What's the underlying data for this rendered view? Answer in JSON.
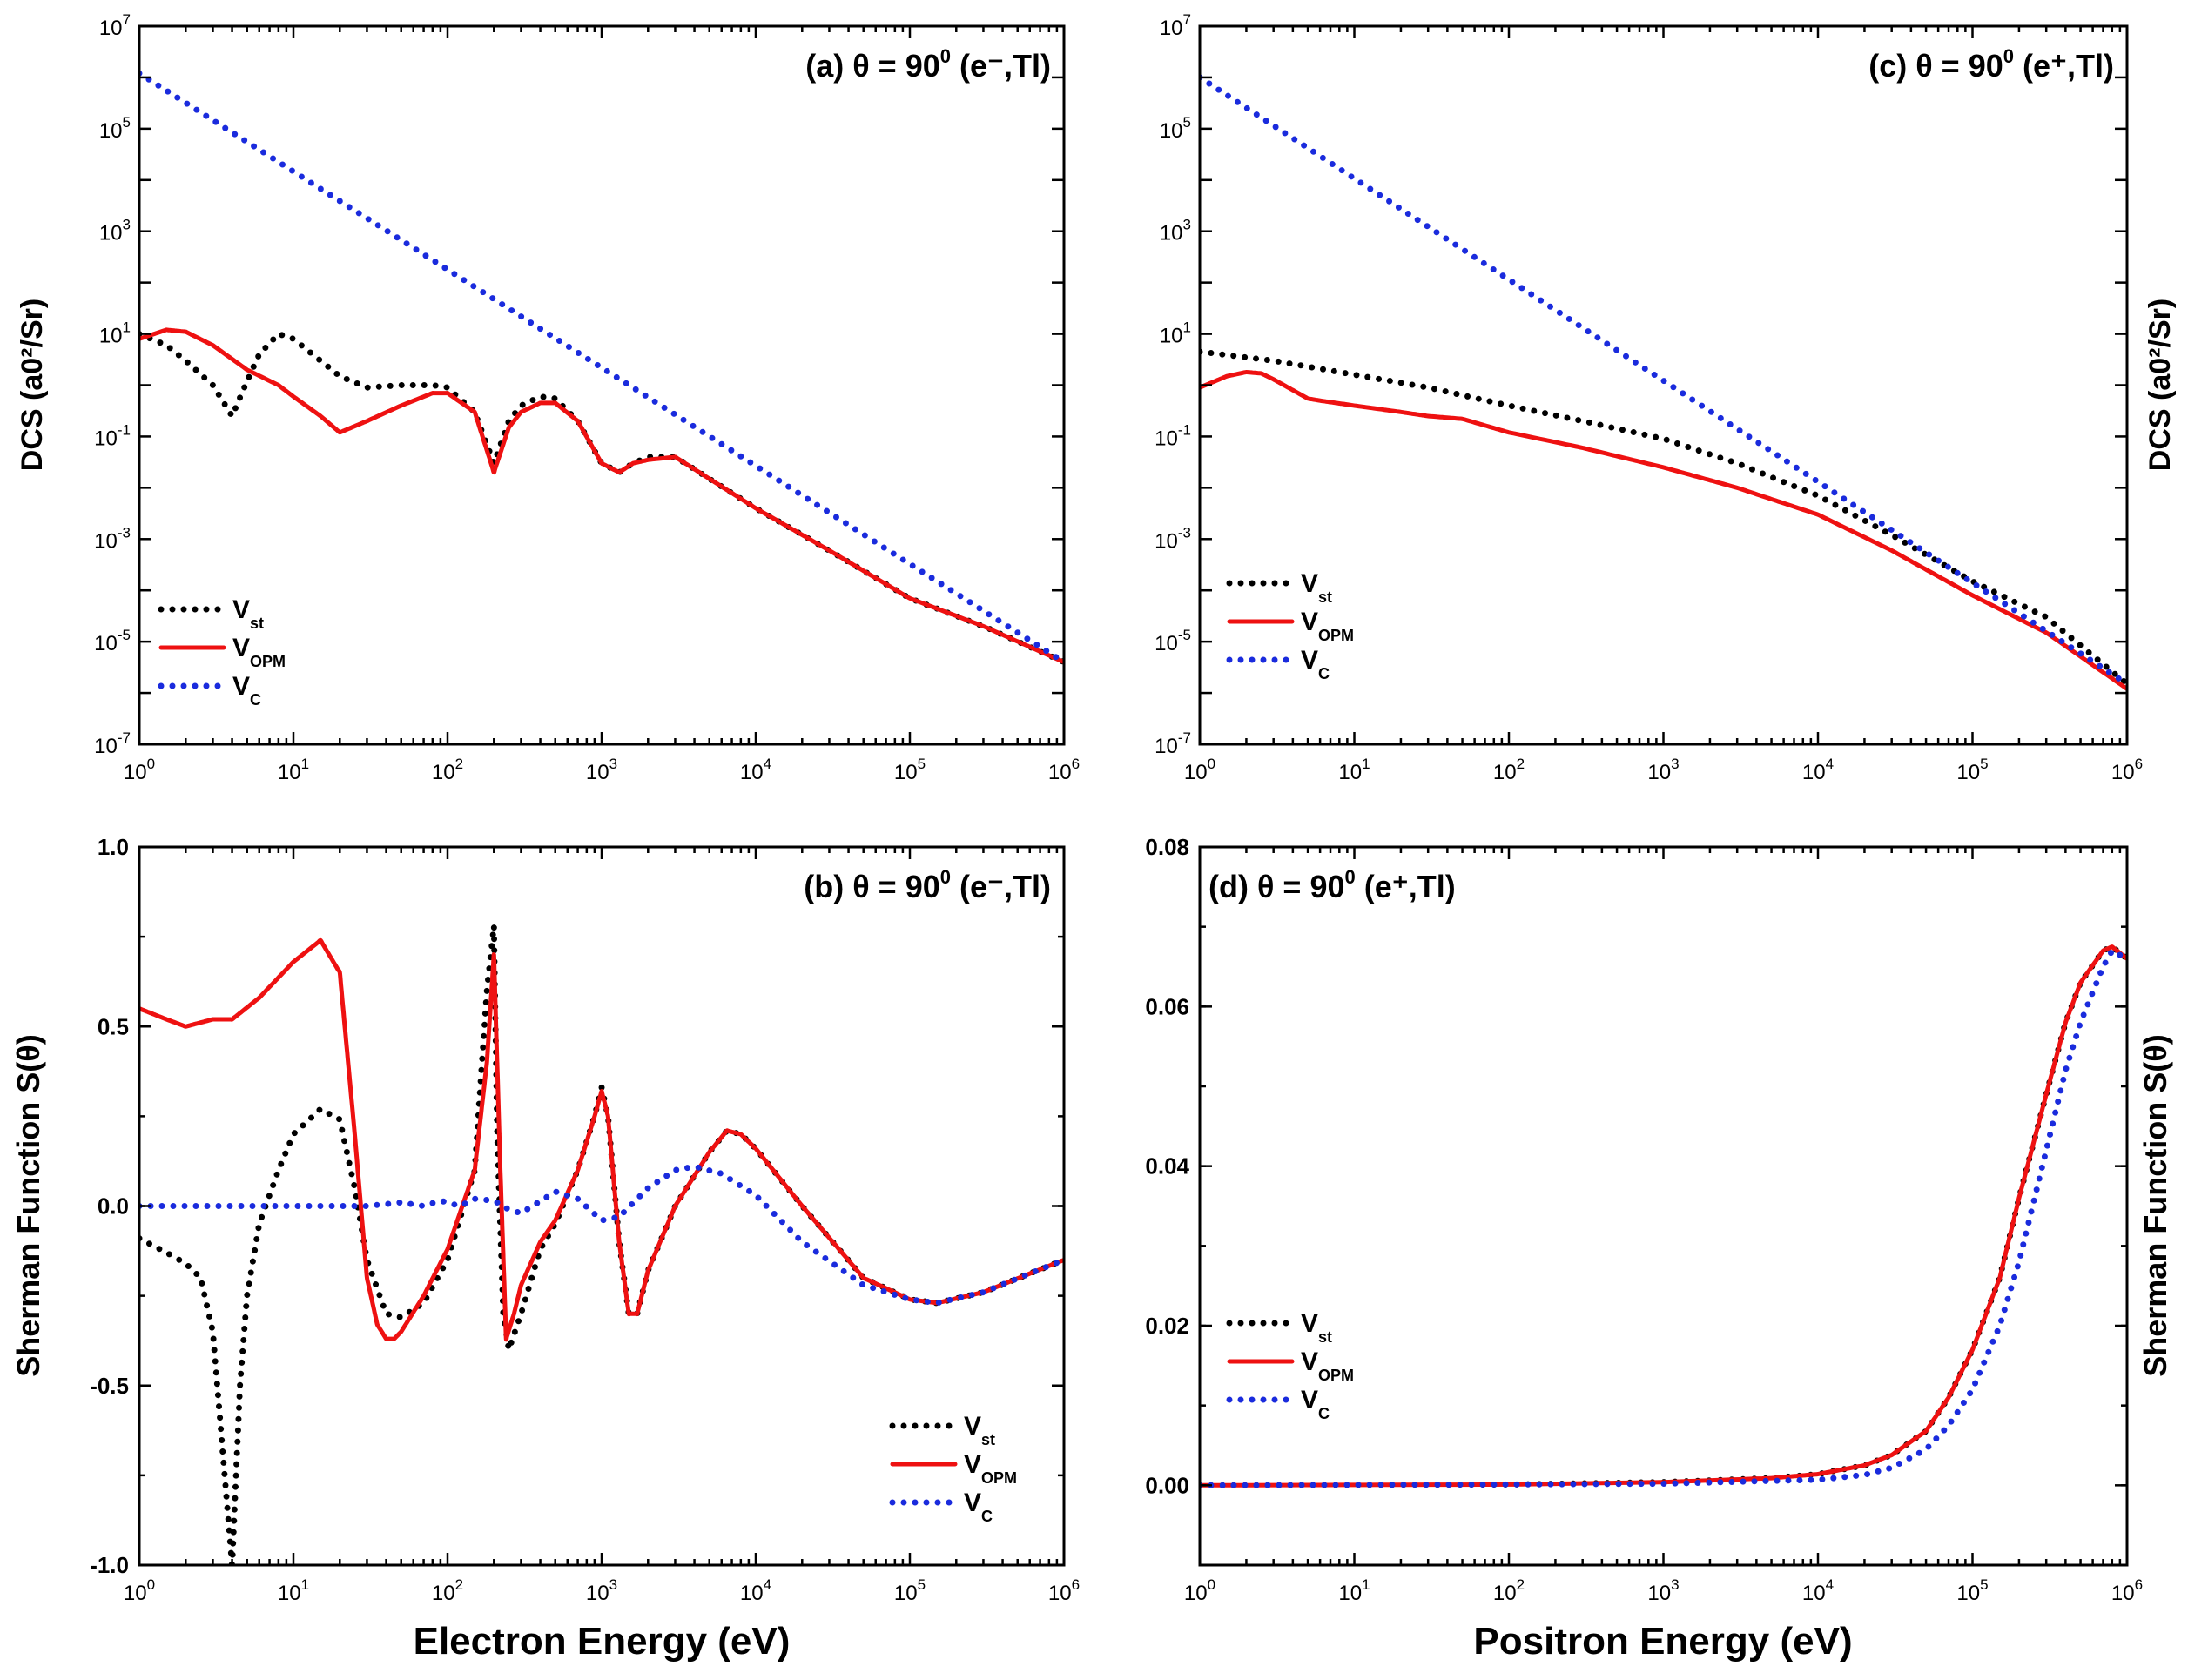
{
  "figure": {
    "x_axis_bottom_left": "Electron Energy (eV)",
    "x_axis_bottom_right": "Positron Energy (eV)",
    "y_axis_top": "DCS (a0²/Sr)",
    "y_axis_bottom": "Sherman Function S(θ)"
  },
  "chart_data": [
    {
      "id": "a",
      "type": "line",
      "title": "(a) θ = 90⁰ (e⁻,Tl)",
      "title_parts": {
        "prefix": "(a) θ = 90",
        "sup": "0",
        "suffix": " (e⁻,Tl)"
      },
      "xlabel": "",
      "ylabel": "DCS (a0²/Sr)",
      "xscale": "log",
      "yscale": "log",
      "xlim": [
        1,
        1000000
      ],
      "ylim": [
        1e-07,
        10000000.0
      ],
      "xticks": [
        "10^0",
        "10^1",
        "10^2",
        "10^3",
        "10^4",
        "10^5",
        "10^6"
      ],
      "yticks": [
        "10^-7",
        "10^-5",
        "10^-3",
        "10^-1",
        "10^1",
        "10^3",
        "10^5",
        "10^7"
      ],
      "legend_position": "bottom-left",
      "series": [
        {
          "name": "Vst",
          "name_main": "V",
          "name_sub": "st",
          "color": "#000000",
          "style": "dotted",
          "x": [
            1,
            1.5,
            2,
            3,
            4,
            5,
            6,
            8,
            10,
            15,
            20,
            30,
            50,
            80,
            100,
            150,
            200,
            250,
            300,
            400,
            500,
            700,
            1000,
            1300,
            1600,
            2000,
            3000,
            5000,
            10000,
            30000,
            100000,
            300000,
            1000000
          ],
          "y": [
            10,
            6,
            3,
            1,
            0.25,
            1.2,
            4,
            10,
            8,
            3,
            1.5,
            0.9,
            1,
            1,
            0.9,
            0.3,
            0.03,
            0.2,
            0.4,
            0.6,
            0.55,
            0.2,
            0.03,
            0.02,
            0.03,
            0.04,
            0.04,
            0.015,
            0.004,
            0.0006,
            7e-05,
            2e-05,
            4e-06
          ]
        },
        {
          "name": "VOPM",
          "name_main": "V",
          "name_sub": "OPM",
          "color": "#ee1111",
          "style": "solid",
          "x": [
            1,
            1.5,
            2,
            3,
            5,
            8,
            10,
            15,
            20,
            30,
            50,
            80,
            100,
            150,
            200,
            250,
            300,
            400,
            500,
            700,
            1000,
            1300,
            1600,
            2000,
            3000,
            5000,
            10000,
            30000,
            100000,
            300000,
            1000000
          ],
          "y": [
            8,
            12,
            11,
            6,
            2,
            1,
            0.6,
            0.25,
            0.12,
            0.2,
            0.4,
            0.7,
            0.7,
            0.3,
            0.02,
            0.15,
            0.3,
            0.45,
            0.45,
            0.2,
            0.03,
            0.02,
            0.03,
            0.035,
            0.04,
            0.015,
            0.004,
            0.0006,
            7e-05,
            2e-05,
            4e-06
          ]
        },
        {
          "name": "VC",
          "name_main": "V",
          "name_sub": "C",
          "color": "#1a2bdd",
          "style": "dotted",
          "x": [
            1,
            1000000
          ],
          "y": [
            1200000,
            4e-06
          ]
        }
      ]
    },
    {
      "id": "b",
      "type": "line",
      "title": "(b) θ = 90⁰ (e⁻,Tl)",
      "title_parts": {
        "prefix": "(b) θ = 90",
        "sup": "0",
        "suffix": " (e⁻,Tl)"
      },
      "xlabel": "Electron Energy (eV)",
      "ylabel": "Sherman Function S(θ)",
      "xscale": "log",
      "yscale": "linear",
      "xlim": [
        1,
        1000000
      ],
      "ylim": [
        -1.0,
        1.0
      ],
      "xticks": [
        "10^0",
        "10^1",
        "10^2",
        "10^3",
        "10^4",
        "10^5",
        "10^6"
      ],
      "yticks": [
        "-1.0",
        "-0.5",
        "0.0",
        "0.5",
        "1.0"
      ],
      "legend_position": "bottom-right",
      "series": [
        {
          "name": "Vst",
          "name_main": "V",
          "name_sub": "st",
          "color": "#000000",
          "style": "dotted",
          "x": [
            1,
            1.5,
            2,
            2.5,
            3,
            3.5,
            4,
            4.5,
            5,
            6,
            8,
            10,
            15,
            20,
            25,
            30,
            40,
            50,
            70,
            100,
            150,
            180,
            200,
            210,
            230,
            250,
            300,
            400,
            500,
            700,
            900,
            1000,
            1100,
            1300,
            1500,
            1700,
            2000,
            3000,
            5000,
            6500,
            8000,
            10000,
            20000,
            50000,
            100000,
            150000,
            300000,
            1000000
          ],
          "y": [
            -0.09,
            -0.13,
            -0.16,
            -0.2,
            -0.35,
            -0.7,
            -1.0,
            -0.5,
            -0.25,
            -0.05,
            0.1,
            0.2,
            0.27,
            0.24,
            0.05,
            -0.15,
            -0.3,
            -0.31,
            -0.27,
            -0.15,
            0.1,
            0.6,
            0.78,
            0.2,
            -0.3,
            -0.4,
            -0.3,
            -0.12,
            -0.05,
            0.1,
            0.25,
            0.33,
            0.25,
            -0.1,
            -0.3,
            -0.3,
            -0.18,
            0.0,
            0.15,
            0.21,
            0.2,
            0.16,
            0.0,
            -0.2,
            -0.26,
            -0.27,
            -0.24,
            -0.15
          ]
        },
        {
          "name": "VOPM",
          "name_main": "V",
          "name_sub": "OPM",
          "color": "#ee1111",
          "style": "solid",
          "x": [
            1,
            1.5,
            2,
            3,
            4,
            6,
            10,
            15,
            20,
            25,
            30,
            35,
            40,
            45,
            50,
            70,
            100,
            150,
            180,
            200,
            220,
            240,
            270,
            300,
            400,
            500,
            700,
            900,
            1000,
            1100,
            1300,
            1500,
            1700,
            2000,
            3000,
            5000,
            6500,
            8000,
            10000,
            20000,
            50000,
            100000,
            150000,
            300000,
            1000000
          ],
          "y": [
            0.55,
            0.52,
            0.5,
            0.52,
            0.52,
            0.58,
            0.68,
            0.74,
            0.65,
            0.2,
            -0.2,
            -0.33,
            -0.37,
            -0.37,
            -0.35,
            -0.25,
            -0.12,
            0.1,
            0.4,
            0.7,
            0.1,
            -0.37,
            -0.3,
            -0.22,
            -0.1,
            -0.04,
            0.1,
            0.25,
            0.32,
            0.25,
            -0.1,
            -0.3,
            -0.3,
            -0.18,
            0.0,
            0.15,
            0.21,
            0.2,
            0.16,
            0.0,
            -0.2,
            -0.26,
            -0.27,
            -0.24,
            -0.15
          ]
        },
        {
          "name": "VC",
          "name_main": "V",
          "name_sub": "C",
          "color": "#1a2bdd",
          "style": "dotted",
          "x": [
            1,
            10,
            30,
            50,
            70,
            90,
            120,
            150,
            200,
            250,
            300,
            500,
            700,
            1000,
            1300,
            2000,
            3000,
            4000,
            6000,
            10000,
            20000,
            50000,
            100000,
            150000,
            300000,
            1000000
          ],
          "y": [
            0.0,
            0.0,
            0.0,
            0.01,
            0.0,
            0.015,
            0.0,
            0.02,
            0.015,
            -0.01,
            -0.02,
            0.04,
            0.02,
            -0.04,
            -0.03,
            0.05,
            0.1,
            0.11,
            0.09,
            0.03,
            -0.1,
            -0.22,
            -0.26,
            -0.27,
            -0.24,
            -0.15
          ]
        }
      ]
    },
    {
      "id": "c",
      "type": "line",
      "title": "(c) θ = 90⁰ (e⁺,Tl)",
      "title_parts": {
        "prefix": "(c) θ = 90",
        "sup": "0",
        "suffix": " (e⁺,Tl)"
      },
      "xlabel": "",
      "ylabel": "DCS (a0²/Sr)",
      "xscale": "log",
      "yscale": "log",
      "xlim": [
        1,
        1000000
      ],
      "ylim": [
        1e-07,
        10000000.0
      ],
      "xticks": [
        "10^0",
        "10^1",
        "10^2",
        "10^3",
        "10^4",
        "10^5",
        "10^6"
      ],
      "yticks": [
        "10^-7",
        "10^-5",
        "10^-3",
        "10^-1",
        "10^1",
        "10^3",
        "10^5",
        "10^7"
      ],
      "legend_position": "bottom-left",
      "series": [
        {
          "name": "Vst",
          "name_main": "V",
          "name_sub": "st",
          "color": "#000000",
          "style": "dotted",
          "x": [
            1,
            3,
            10,
            30,
            100,
            300,
            1000,
            3000,
            10000,
            30000,
            100000,
            300000,
            1000000
          ],
          "y": [
            4.5,
            3,
            1.6,
            0.9,
            0.4,
            0.2,
            0.09,
            0.03,
            0.007,
            0.0012,
            0.00015,
            3e-05,
            1.5e-06
          ]
        },
        {
          "name": "VOPM",
          "name_main": "V",
          "name_sub": "OPM",
          "color": "#ee1111",
          "style": "solid",
          "x": [
            1,
            1.5,
            2,
            2.5,
            3,
            4,
            5,
            6,
            10,
            20,
            30,
            50,
            100,
            300,
            1000,
            3000,
            10000,
            30000,
            100000,
            300000,
            1000000
          ],
          "y": [
            0.9,
            1.5,
            1.8,
            1.7,
            1.3,
            0.8,
            0.55,
            0.5,
            0.4,
            0.3,
            0.25,
            0.22,
            0.12,
            0.06,
            0.025,
            0.01,
            0.003,
            0.0006,
            8e-05,
            1.5e-05,
            1.2e-06
          ]
        },
        {
          "name": "VC",
          "name_main": "V",
          "name_sub": "C",
          "color": "#1a2bdd",
          "style": "dotted",
          "x": [
            1,
            1000000
          ],
          "y": [
            1000000,
            1.5e-06
          ]
        }
      ]
    },
    {
      "id": "d",
      "type": "line",
      "title": "(d) θ = 90⁰ (e⁺,Tl)",
      "title_parts": {
        "prefix": "(d) θ = 90",
        "sup": "0",
        "suffix": " (e⁺,Tl)"
      },
      "xlabel": "Positron Energy (eV)",
      "ylabel": "Sherman Function S(θ)",
      "xscale": "log",
      "yscale": "linear",
      "xlim": [
        1,
        1000000
      ],
      "ylim": [
        -0.01,
        0.08
      ],
      "xticks": [
        "10^0",
        "10^1",
        "10^2",
        "10^3",
        "10^4",
        "10^5",
        "10^6"
      ],
      "yticks": [
        "0.00",
        "0.02",
        "0.04",
        "0.06",
        "0.08"
      ],
      "legend_position": "lower-left",
      "series": [
        {
          "name": "Vst",
          "name_main": "V",
          "name_sub": "st",
          "color": "#000000",
          "style": "dotted",
          "x": [
            1,
            100,
            1000,
            5000,
            10000,
            20000,
            30000,
            50000,
            70000,
            100000,
            150000,
            200000,
            300000,
            400000,
            500000,
            700000,
            800000,
            1000000
          ],
          "y": [
            0,
            0.0001,
            0.0004,
            0.0009,
            0.0014,
            0.0025,
            0.0038,
            0.0068,
            0.011,
            0.017,
            0.026,
            0.036,
            0.049,
            0.058,
            0.063,
            0.067,
            0.0675,
            0.066
          ]
        },
        {
          "name": "VOPM",
          "name_main": "V",
          "name_sub": "OPM",
          "color": "#ee1111",
          "style": "solid",
          "x": [
            1,
            100,
            1000,
            5000,
            10000,
            20000,
            30000,
            50000,
            70000,
            100000,
            150000,
            200000,
            300000,
            400000,
            500000,
            700000,
            800000,
            1000000
          ],
          "y": [
            0,
            0.0001,
            0.0004,
            0.0009,
            0.0014,
            0.0025,
            0.0038,
            0.0068,
            0.011,
            0.017,
            0.026,
            0.036,
            0.049,
            0.058,
            0.063,
            0.067,
            0.0675,
            0.066
          ]
        },
        {
          "name": "VC",
          "name_main": "V",
          "name_sub": "C",
          "color": "#1a2bdd",
          "style": "dotted",
          "x": [
            1,
            100,
            1000,
            10000,
            20000,
            30000,
            50000,
            70000,
            100000,
            150000,
            200000,
            300000,
            400000,
            500000,
            700000,
            800000,
            1000000
          ],
          "y": [
            0,
            0.0001,
            0.0002,
            0.0007,
            0.0013,
            0.0022,
            0.0045,
            0.0075,
            0.012,
            0.02,
            0.028,
            0.042,
            0.052,
            0.058,
            0.065,
            0.067,
            0.066
          ]
        }
      ]
    }
  ]
}
